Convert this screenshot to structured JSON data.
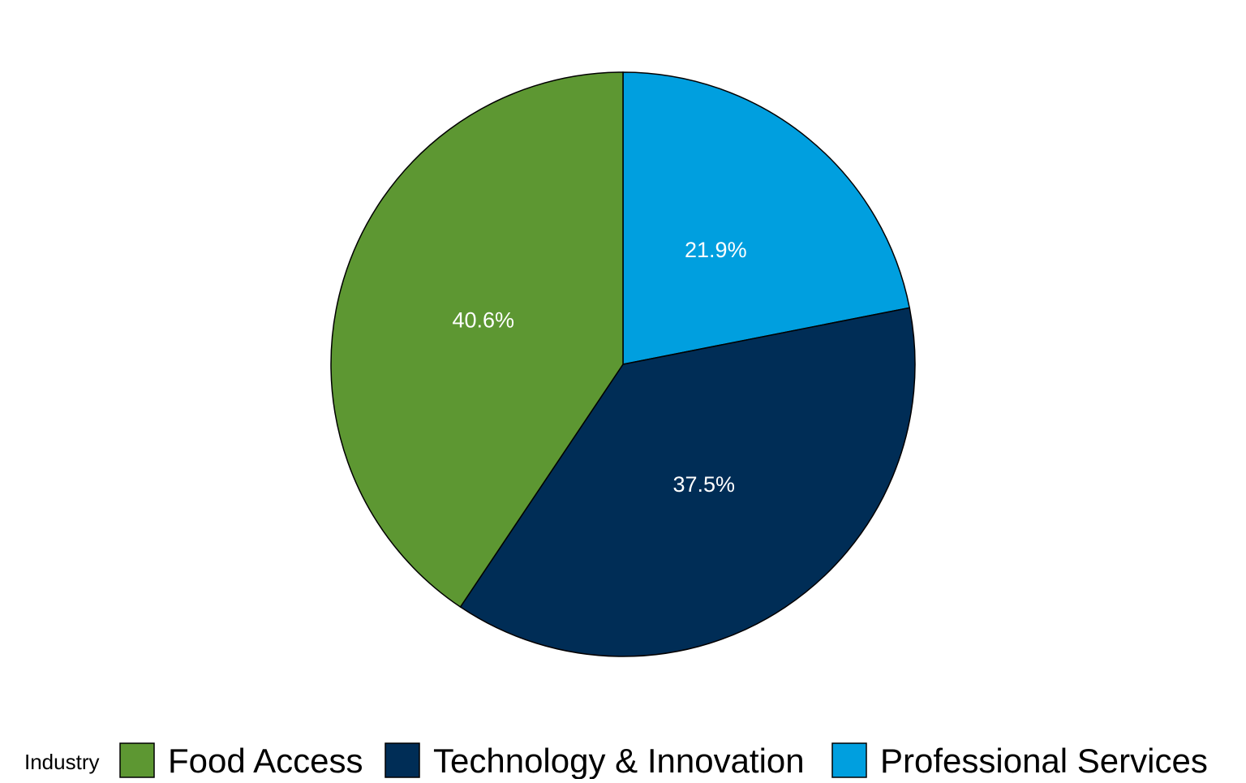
{
  "chart_data": {
    "type": "pie",
    "title": "",
    "legend": {
      "title": "Industry",
      "position": "bottom"
    },
    "slices": [
      {
        "label": "Professional Services",
        "value": 21.9,
        "display": "21.9%",
        "color": "#009FDF"
      },
      {
        "label": "Technology & Innovation",
        "value": 37.5,
        "display": "37.5%",
        "color": "#002D56"
      },
      {
        "label": "Food Access",
        "value": 40.6,
        "display": "40.6%",
        "color": "#5D9732"
      }
    ],
    "legend_order": [
      "Food Access",
      "Technology & Innovation",
      "Professional Services"
    ],
    "start": "12 o'clock",
    "direction": "clockwise",
    "slice_outline_color": "#000000",
    "label_color": "#FFFFFF"
  }
}
